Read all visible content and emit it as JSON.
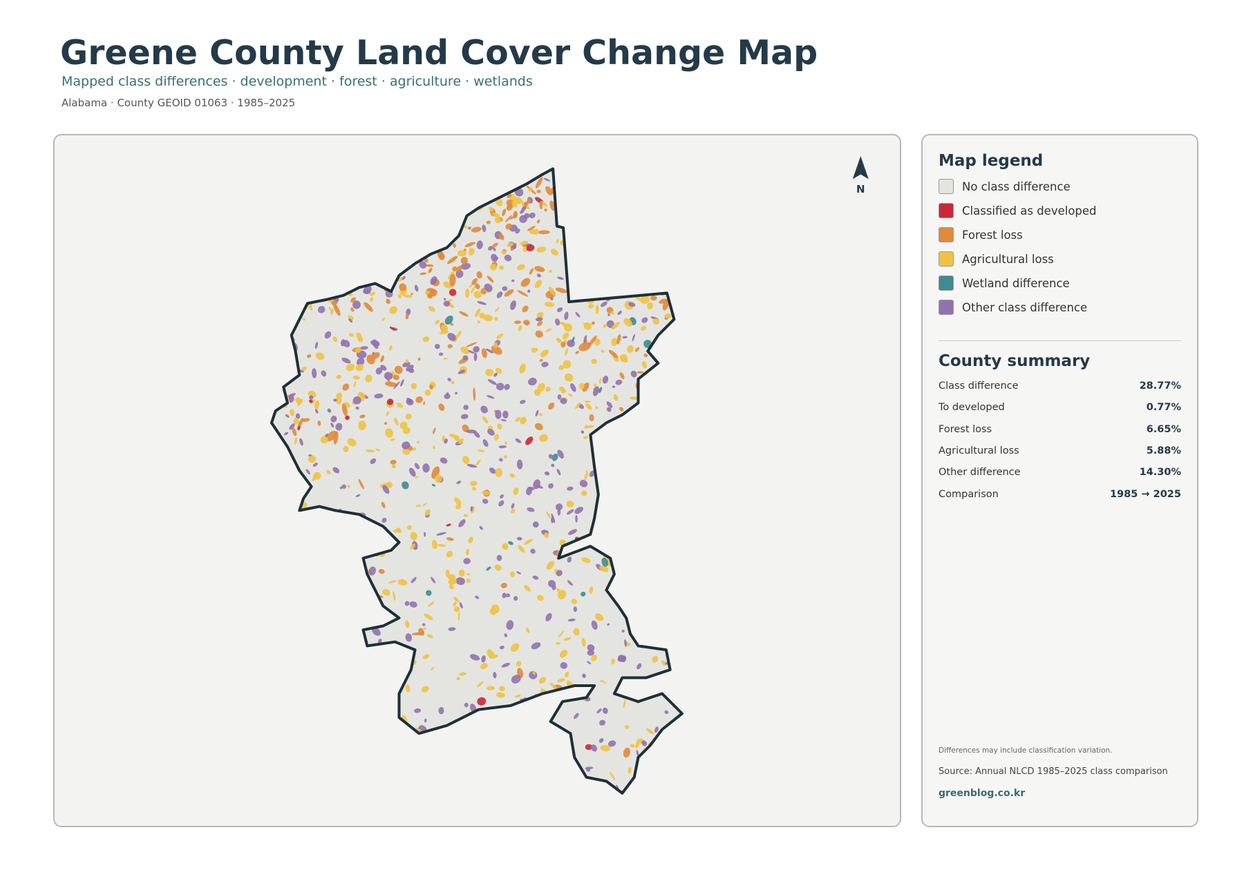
{
  "header": {
    "title": "Greene County Land Cover Change Map",
    "subtitle": "Mapped class differences · development · forest · agriculture · wetlands",
    "meta": "Alabama · County GEOID 01063 · 1985–2025"
  },
  "map": {
    "north_label": "N"
  },
  "legend": {
    "title": "Map legend",
    "items": [
      {
        "label": "No class difference",
        "color": "#e4e4e0"
      },
      {
        "label": "Classified as developed",
        "color": "#c9283a"
      },
      {
        "label": "Forest loss",
        "color": "#e08a3a"
      },
      {
        "label": "Agricultural loss",
        "color": "#f0c244"
      },
      {
        "label": "Wetland difference",
        "color": "#3f8b91"
      },
      {
        "label": "Other class difference",
        "color": "#9272ae"
      }
    ]
  },
  "summary": {
    "title": "County summary",
    "rows": [
      {
        "label": "Class difference",
        "value": "28.77%"
      },
      {
        "label": "To developed",
        "value": "0.77%"
      },
      {
        "label": "Forest loss",
        "value": "6.65%"
      },
      {
        "label": "Agricultural loss",
        "value": "5.88%"
      },
      {
        "label": "Other difference",
        "value": "14.30%"
      },
      {
        "label": "Comparison",
        "value": "1985 → 2025"
      }
    ]
  },
  "notes": {
    "caveat": "Differences may include classification variation.",
    "source": "Source: Annual NLCD 1985–2025 class comparison",
    "credit": "greenblog.co.kr"
  }
}
